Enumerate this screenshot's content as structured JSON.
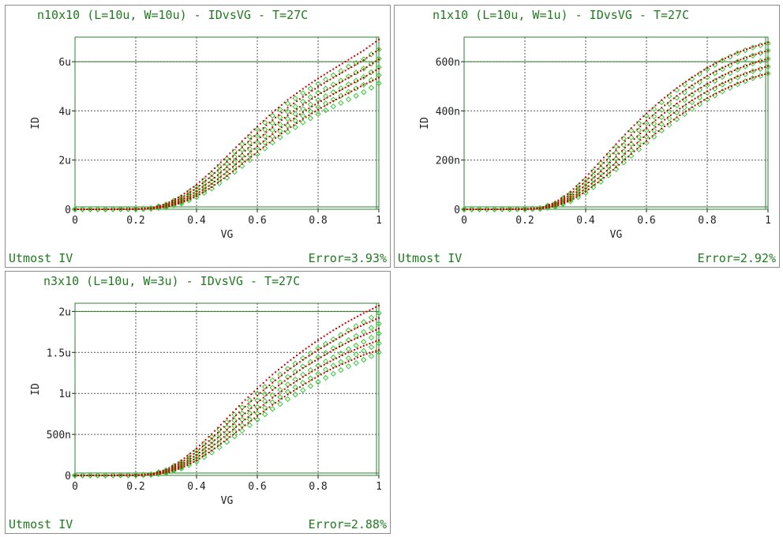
{
  "colors": {
    "text_green": "#1f7a1f",
    "frame_green": "#2e7d32",
    "measured_green": "#33cc33",
    "simulated_red": "#cc0000",
    "grid": "#555555"
  },
  "panels": [
    {
      "title": "n10x10 (L=10u, W=10u) - IDvsVG - T=27C",
      "footer_left": "Utmost IV",
      "footer_right": "Error=3.93%"
    },
    {
      "title": "n1x10 (L=10u, W=1u) - IDvsVG - T=27C",
      "footer_left": "Utmost IV",
      "footer_right": "Error=2.92%"
    },
    {
      "title": "n3x10 (L=10u, W=3u) - IDvsVG - T=27C",
      "footer_left": "Utmost IV",
      "footer_right": "Error=2.88%"
    }
  ],
  "chart_data": [
    {
      "type": "line",
      "title": "n10x10 (L=10u, W=10u) - IDvsVG - T=27C",
      "xlabel": "VG",
      "ylabel": "ID",
      "xlim": [
        0,
        1
      ],
      "ylim": [
        0,
        7e-06
      ],
      "x_ticks": [
        0,
        0.2,
        0.4,
        0.6,
        0.8,
        1
      ],
      "x_tick_labels": [
        "0",
        "0.2",
        "0.4",
        "0.6",
        "0.8",
        "1"
      ],
      "y_ticks": [
        0,
        2e-06,
        4e-06,
        6e-06
      ],
      "y_tick_labels": [
        "0",
        "2u",
        "4u",
        "6u"
      ],
      "grid": true,
      "legend": "none",
      "x": [
        0,
        0.1,
        0.2,
        0.25,
        0.3,
        0.35,
        0.4,
        0.45,
        0.5,
        0.55,
        0.6,
        0.65,
        0.7,
        0.75,
        0.8,
        0.85,
        0.9,
        0.95,
        1.0
      ],
      "measured": [
        [
          0,
          0,
          1e-08,
          5e-08,
          2e-07,
          5e-07,
          9.2e-07,
          1.45e-06,
          2.05e-06,
          2.65e-06,
          3.25e-06,
          3.8e-06,
          4.3e-06,
          4.72e-06,
          5.1e-06,
          5.45e-06,
          5.8e-06,
          6.1e-06,
          6.5e-06
        ],
        [
          0,
          0,
          1e-08,
          4e-08,
          1.6e-07,
          4.2e-07,
          8e-07,
          1.28e-06,
          1.85e-06,
          2.42e-06,
          2.98e-06,
          3.5e-06,
          3.97e-06,
          4.38e-06,
          4.74e-06,
          5.07e-06,
          5.4e-06,
          5.72e-06,
          6.12e-06
        ],
        [
          0,
          0,
          1e-08,
          3e-08,
          1.3e-07,
          3.5e-07,
          6.8e-07,
          1.12e-06,
          1.64e-06,
          2.18e-06,
          2.72e-06,
          3.22e-06,
          3.68e-06,
          4.08e-06,
          4.44e-06,
          4.76e-06,
          5.08e-06,
          5.38e-06,
          5.77e-06
        ],
        [
          0,
          0,
          5e-09,
          2.5e-08,
          1e-07,
          2.8e-07,
          5.8e-07,
          9.7e-07,
          1.45e-06,
          1.96e-06,
          2.47e-06,
          2.96e-06,
          3.4e-06,
          3.8e-06,
          4.15e-06,
          4.46e-06,
          4.77e-06,
          5.06e-06,
          5.45e-06
        ],
        [
          0,
          0,
          5e-09,
          2e-08,
          8e-08,
          2.3e-07,
          4.9e-07,
          8.4e-07,
          1.28e-06,
          1.76e-06,
          2.24e-06,
          2.71e-06,
          3.14e-06,
          3.53e-06,
          3.87e-06,
          4.18e-06,
          4.47e-06,
          4.76e-06,
          5.12e-06
        ]
      ],
      "simulated": [
        [
          0,
          0,
          1e-08,
          5e-08,
          2.2e-07,
          5.5e-07,
          1e-06,
          1.55e-06,
          2.15e-06,
          2.77e-06,
          3.37e-06,
          3.93e-06,
          4.45e-06,
          4.9e-06,
          5.32e-06,
          5.7e-06,
          6.08e-06,
          6.46e-06,
          6.9e-06
        ],
        [
          0,
          0,
          1e-08,
          4e-08,
          1.8e-07,
          4.6e-07,
          8.6e-07,
          1.36e-06,
          1.93e-06,
          2.52e-06,
          3.09e-06,
          3.63e-06,
          4.13e-06,
          4.57e-06,
          4.98e-06,
          5.35e-06,
          5.71e-06,
          6.07e-06,
          6.5e-06
        ],
        [
          0,
          0,
          1e-08,
          3.5e-08,
          1.4e-07,
          3.8e-07,
          7.3e-07,
          1.18e-06,
          1.71e-06,
          2.27e-06,
          2.82e-06,
          3.34e-06,
          3.82e-06,
          4.25e-06,
          4.65e-06,
          5e-06,
          5.35e-06,
          5.7e-06,
          6.1e-06
        ],
        [
          0,
          0,
          5e-09,
          3e-08,
          1.1e-07,
          3.1e-07,
          6.2e-07,
          1.03e-06,
          1.52e-06,
          2.04e-06,
          2.56e-06,
          3.06e-06,
          3.52e-06,
          3.95e-06,
          4.33e-06,
          4.68e-06,
          5.02e-06,
          5.36e-06,
          5.72e-06
        ],
        [
          0,
          0,
          5e-09,
          2e-08,
          9e-08,
          2.6e-07,
          5.3e-07,
          9e-07,
          1.35e-06,
          1.84e-06,
          2.33e-06,
          2.81e-06,
          3.26e-06,
          3.67e-06,
          4.05e-06,
          4.4e-06,
          4.73e-06,
          5.06e-06,
          5.35e-06
        ]
      ]
    },
    {
      "type": "line",
      "title": "n1x10 (L=10u, W=1u) - IDvsVG - T=27C",
      "xlabel": "VG",
      "ylabel": "ID",
      "xlim": [
        0,
        1
      ],
      "ylim": [
        0,
        7e-07
      ],
      "x_ticks": [
        0,
        0.2,
        0.4,
        0.6,
        0.8,
        1
      ],
      "x_tick_labels": [
        "0",
        "0.2",
        "0.4",
        "0.6",
        "0.8",
        "1"
      ],
      "y_ticks": [
        0,
        2e-07,
        4e-07,
        6e-07
      ],
      "y_tick_labels": [
        "0",
        "200n",
        "400n",
        "600n"
      ],
      "grid": true,
      "legend": "none",
      "x": [
        0,
        0.1,
        0.2,
        0.25,
        0.3,
        0.35,
        0.4,
        0.45,
        0.5,
        0.55,
        0.6,
        0.65,
        0.7,
        0.75,
        0.8,
        0.85,
        0.9,
        0.95,
        1.0
      ],
      "measured": [
        [
          0,
          0,
          1e-09,
          5e-09,
          2.5e-08,
          6.5e-08,
          1.22e-07,
          1.88e-07,
          2.55e-07,
          3.2e-07,
          3.8e-07,
          4.35e-07,
          4.85e-07,
          5.3e-07,
          5.7e-07,
          6.05e-07,
          6.35e-07,
          6.58e-07,
          6.75e-07
        ],
        [
          0,
          0,
          1e-09,
          4e-09,
          2.1e-08,
          5.6e-08,
          1.07e-07,
          1.67e-07,
          2.3e-07,
          2.92e-07,
          3.5e-07,
          4.04e-07,
          4.53e-07,
          4.97e-07,
          5.36e-07,
          5.7e-07,
          6e-07,
          6.25e-07,
          6.45e-07
        ],
        [
          0,
          0,
          1e-09,
          3e-09,
          1.7e-08,
          4.7e-08,
          9.2e-08,
          1.46e-07,
          2.05e-07,
          2.65e-07,
          3.22e-07,
          3.74e-07,
          4.22e-07,
          4.66e-07,
          5.04e-07,
          5.38e-07,
          5.68e-07,
          5.93e-07,
          6.12e-07
        ],
        [
          0,
          0,
          5e-10,
          2e-09,
          1.3e-08,
          3.9e-08,
          7.9e-08,
          1.28e-07,
          1.83e-07,
          2.4e-07,
          2.95e-07,
          3.46e-07,
          3.93e-07,
          4.35e-07,
          4.73e-07,
          5.07e-07,
          5.36e-07,
          5.61e-07,
          5.8e-07
        ],
        [
          0,
          0,
          5e-10,
          2e-09,
          1e-08,
          3.2e-08,
          6.7e-08,
          1.12e-07,
          1.63e-07,
          2.17e-07,
          2.7e-07,
          3.2e-07,
          3.66e-07,
          4.08e-07,
          4.46e-07,
          4.79e-07,
          5.08e-07,
          5.33e-07,
          5.52e-07
        ]
      ],
      "simulated": [
        [
          0,
          0,
          1e-09,
          5e-09,
          2.8e-08,
          7e-08,
          1.3e-07,
          1.97e-07,
          2.65e-07,
          3.3e-07,
          3.9e-07,
          4.44e-07,
          4.93e-07,
          5.36e-07,
          5.75e-07,
          6.08e-07,
          6.37e-07,
          6.6e-07,
          6.78e-07
        ],
        [
          0,
          0,
          1e-09,
          4e-09,
          2.3e-08,
          6e-08,
          1.14e-07,
          1.76e-07,
          2.4e-07,
          3.02e-07,
          3.6e-07,
          4.13e-07,
          4.61e-07,
          5.04e-07,
          5.42e-07,
          5.75e-07,
          6.04e-07,
          6.27e-07,
          6.45e-07
        ],
        [
          0,
          0,
          1e-09,
          3e-09,
          1.9e-08,
          5e-08,
          9.8e-08,
          1.54e-07,
          2.14e-07,
          2.74e-07,
          3.31e-07,
          3.83e-07,
          4.3e-07,
          4.72e-07,
          5.1e-07,
          5.43e-07,
          5.71e-07,
          5.94e-07,
          6.12e-07
        ],
        [
          0,
          0,
          5e-10,
          2e-09,
          1.5e-08,
          4.2e-08,
          8.4e-08,
          1.35e-07,
          1.91e-07,
          2.49e-07,
          3.04e-07,
          3.55e-07,
          4.01e-07,
          4.43e-07,
          4.8e-07,
          5.12e-07,
          5.4e-07,
          5.63e-07,
          5.82e-07
        ],
        [
          0,
          0,
          5e-10,
          2e-09,
          1.2e-08,
          3.5e-08,
          7.2e-08,
          1.18e-07,
          1.7e-07,
          2.25e-07,
          2.78e-07,
          3.28e-07,
          3.74e-07,
          4.15e-07,
          4.52e-07,
          4.84e-07,
          5.12e-07,
          5.35e-07,
          5.53e-07
        ]
      ]
    },
    {
      "type": "line",
      "title": "n3x10 (L=10u, W=3u) - IDvsVG - T=27C",
      "xlabel": "VG",
      "ylabel": "ID",
      "xlim": [
        0,
        1
      ],
      "ylim": [
        0,
        2.1e-06
      ],
      "x_ticks": [
        0,
        0.2,
        0.4,
        0.6,
        0.8,
        1
      ],
      "x_tick_labels": [
        "0",
        "0.2",
        "0.4",
        "0.6",
        "0.8",
        "1"
      ],
      "y_ticks": [
        0,
        5e-07,
        1e-06,
        1.5e-06,
        2e-06
      ],
      "y_tick_labels": [
        "0",
        "500n",
        "1u",
        "1.5u",
        "2u"
      ],
      "grid": true,
      "legend": "none",
      "x": [
        0,
        0.1,
        0.2,
        0.25,
        0.3,
        0.35,
        0.4,
        0.45,
        0.5,
        0.55,
        0.6,
        0.65,
        0.7,
        0.75,
        0.8,
        0.85,
        0.9,
        0.95,
        1.0
      ],
      "measured": [
        [
          0,
          0,
          3e-09,
          1.5e-08,
          6.5e-08,
          1.65e-07,
          3.05e-07,
          4.7e-07,
          6.5e-07,
          8.3e-07,
          1e-06,
          1.16e-06,
          1.3e-06,
          1.43e-06,
          1.55e-06,
          1.66e-06,
          1.77e-06,
          1.87e-06,
          1.98e-06
        ],
        [
          0,
          0,
          3e-09,
          1.2e-08,
          5.4e-08,
          1.42e-07,
          2.67e-07,
          4.18e-07,
          5.85e-07,
          7.55e-07,
          9.15e-07,
          1.07e-06,
          1.2e-06,
          1.33e-06,
          1.44e-06,
          1.55e-06,
          1.65e-06,
          1.75e-06,
          1.85e-06
        ],
        [
          0,
          0,
          2e-09,
          1e-08,
          4.4e-08,
          1.2e-07,
          2.3e-07,
          3.68e-07,
          5.22e-07,
          6.8e-07,
          8.33e-07,
          9.78e-07,
          1.11e-06,
          1.23e-06,
          1.34e-06,
          1.44e-06,
          1.54e-06,
          1.63e-06,
          1.73e-06
        ],
        [
          0,
          0,
          1.5e-09,
          8e-09,
          3.5e-08,
          1e-07,
          1.97e-07,
          3.22e-07,
          4.63e-07,
          6.1e-07,
          7.55e-07,
          8.92e-07,
          1.02e-06,
          1.13e-06,
          1.24e-06,
          1.34e-06,
          1.43e-06,
          1.52e-06,
          1.61e-06
        ],
        [
          0,
          0,
          1e-09,
          6e-09,
          2.8e-08,
          8.3e-08,
          1.67e-07,
          2.79e-07,
          4.08e-07,
          5.45e-07,
          6.8e-07,
          8.1e-07,
          9.3e-07,
          1.04e-06,
          1.14e-06,
          1.24e-06,
          1.33e-06,
          1.41e-06,
          1.5e-06
        ]
      ],
      "simulated": [
        [
          0,
          0,
          3e-09,
          1.6e-08,
          7e-08,
          1.8e-07,
          3.3e-07,
          5.05e-07,
          6.95e-07,
          8.85e-07,
          1.06e-06,
          1.23e-06,
          1.38e-06,
          1.52e-06,
          1.65e-06,
          1.77e-06,
          1.88e-06,
          1.98e-06,
          2.07e-06
        ],
        [
          0,
          0,
          3e-09,
          1.3e-08,
          5.8e-08,
          1.55e-07,
          2.9e-07,
          4.52e-07,
          6.28e-07,
          8.05e-07,
          9.75e-07,
          1.13e-06,
          1.28e-06,
          1.41e-06,
          1.53e-06,
          1.64e-06,
          1.75e-06,
          1.84e-06,
          1.92e-06
        ],
        [
          0,
          0,
          2e-09,
          1e-08,
          4.8e-08,
          1.3e-07,
          2.5e-07,
          3.98e-07,
          5.6e-07,
          7.25e-07,
          8.86e-07,
          1.04e-06,
          1.18e-06,
          1.31e-06,
          1.42e-06,
          1.53e-06,
          1.63e-06,
          1.71e-06,
          1.79e-06
        ],
        [
          0,
          0,
          1.5e-09,
          8e-09,
          3.8e-08,
          1.1e-07,
          2.15e-07,
          3.5e-07,
          4.98e-07,
          6.52e-07,
          8.03e-07,
          9.46e-07,
          1.08e-06,
          1.2e-06,
          1.31e-06,
          1.41e-06,
          1.5e-06,
          1.58e-06,
          1.65e-06
        ],
        [
          0,
          0,
          1e-09,
          6e-09,
          3e-08,
          9e-08,
          1.82e-07,
          3.03e-07,
          4.4e-07,
          5.84e-07,
          7.25e-07,
          8.6e-07,
          9.86e-07,
          1.1e-06,
          1.21e-06,
          1.31e-06,
          1.39e-06,
          1.47e-06,
          1.53e-06
        ]
      ]
    }
  ]
}
